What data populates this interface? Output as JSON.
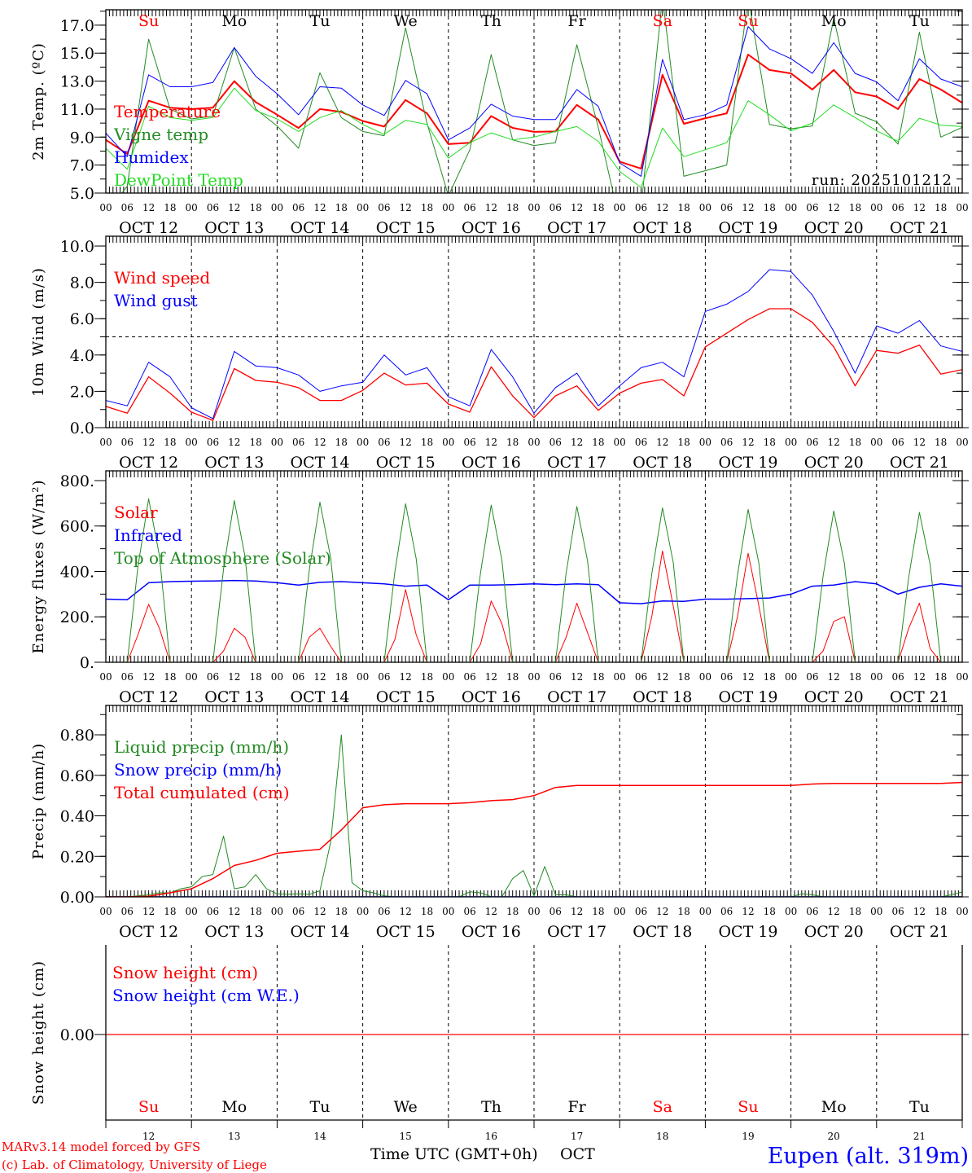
{
  "x_axis": {
    "start": "OCT 12 00",
    "step_hours_labels": 6,
    "hour_labels": [
      "00",
      "06",
      "12",
      "18"
    ],
    "date_labels": [
      "OCT 12",
      "OCT 13",
      "OCT 14",
      "OCT 15",
      "OCT 16",
      "OCT 17",
      "OCT 18",
      "OCT 19",
      "OCT 20",
      "OCT 21"
    ],
    "days": [
      {
        "name": "Su",
        "color": "#ff0000"
      },
      {
        "name": "Mo",
        "color": "#000000"
      },
      {
        "name": "Tu",
        "color": "#000000"
      },
      {
        "name": "We",
        "color": "#000000"
      },
      {
        "name": "Th",
        "color": "#000000"
      },
      {
        "name": "Fr",
        "color": "#000000"
      },
      {
        "name": "Sa",
        "color": "#ff0000"
      },
      {
        "name": "Su",
        "color": "#ff0000"
      },
      {
        "name": "Mo",
        "color": "#000000"
      },
      {
        "name": "Tu",
        "color": "#000000"
      }
    ],
    "day_numbers": [
      "12",
      "13",
      "14",
      "15",
      "16",
      "17",
      "18",
      "19",
      "20",
      "21"
    ],
    "xlabel": "Time UTC (GMT+0h)",
    "month": "OCT"
  },
  "footer": {
    "model": "MARv3.14 model forced by GFS",
    "credit": "(c) Lab. of Climatology, University of Liege",
    "station": "Eupen (alt. 319m)"
  },
  "chart_data": [
    {
      "id": "temperature",
      "type": "line",
      "ylabel": "2m Temp. (ºC)",
      "ylim": [
        5,
        18.1
      ],
      "yticks": [
        5,
        7,
        9,
        11,
        13,
        15,
        17
      ],
      "ytick_labels": [
        "5.0",
        "7.0",
        "9.0",
        "11.0",
        "13.0",
        "15.0",
        "17.0"
      ],
      "yminor": 1,
      "annotation": "run: 2025101212",
      "step_hours": 6,
      "series": [
        {
          "name": "Temperature",
          "color": "#ff0000",
          "width": 2,
          "values": [
            8.8,
            7.8,
            11.6,
            11.1,
            11.0,
            11.1,
            13.0,
            11.5,
            10.6,
            9.65,
            11.0,
            10.8,
            10.15,
            9.75,
            11.65,
            10.7,
            8.5,
            8.6,
            10.5,
            9.66,
            9.37,
            9.4,
            11.3,
            10.25,
            7.24,
            6.75,
            13.45,
            9.95,
            10.35,
            10.7,
            14.9,
            13.8,
            13.55,
            12.4,
            13.8,
            12.2,
            11.9,
            11.0,
            13.15,
            12.4,
            11.45
          ]
        },
        {
          "name": "Vigne temp",
          "color": "#228b22",
          "width": 1,
          "values": [
            3.5,
            5.5,
            16.0,
            11.0,
            10.3,
            10.5,
            15.4,
            11.0,
            9.8,
            8.2,
            13.6,
            10.4,
            9.4,
            9.1,
            16.8,
            10.0,
            4.8,
            8.1,
            14.9,
            8.8,
            8.4,
            8.6,
            15.6,
            9.7,
            3.0,
            4.0,
            19.0,
            6.2,
            6.6,
            7.0,
            19.0,
            9.9,
            9.6,
            9.8,
            17.5,
            10.7,
            10.1,
            8.5,
            16.5,
            9.0,
            9.7
          ]
        },
        {
          "name": "Humidex",
          "color": "#0000ff",
          "width": 1,
          "values": [
            9.28,
            7.6,
            13.45,
            12.6,
            12.6,
            12.9,
            15.4,
            13.35,
            12.1,
            10.6,
            12.6,
            12.5,
            11.3,
            10.55,
            13.05,
            12.1,
            8.8,
            9.65,
            11.35,
            10.5,
            10.25,
            10.25,
            12.4,
            11.2,
            7.15,
            6.2,
            14.55,
            10.25,
            10.6,
            11.3,
            16.9,
            15.3,
            14.6,
            13.55,
            15.75,
            13.55,
            12.95,
            11.6,
            14.6,
            13.15,
            12.6
          ]
        },
        {
          "name": "DewPoint Temp",
          "color": "#22dd22",
          "width": 1,
          "values": [
            8.2,
            6.7,
            11.2,
            10.4,
            10.2,
            10.4,
            12.5,
            10.9,
            10.3,
            9.4,
            10.4,
            10.9,
            9.9,
            9.2,
            10.2,
            9.9,
            7.5,
            8.6,
            9.3,
            8.8,
            9.0,
            9.4,
            9.75,
            8.7,
            6.55,
            5.4,
            9.65,
            7.6,
            8.1,
            8.6,
            11.6,
            10.6,
            9.45,
            10.0,
            11.3,
            10.4,
            9.45,
            8.7,
            10.35,
            9.85,
            9.75
          ]
        }
      ]
    },
    {
      "id": "wind",
      "type": "line",
      "ylabel": "10m Wind (m/s)",
      "ylim": [
        0,
        10.54
      ],
      "yticks": [
        0,
        2,
        4,
        6,
        8,
        10
      ],
      "ytick_labels": [
        "0.0",
        "2.0",
        "4.0",
        "6.0",
        "8.0",
        "10.0"
      ],
      "yminor": 1,
      "reference_line": 5.0,
      "step_hours": 6,
      "series": [
        {
          "name": "Wind speed",
          "color": "#ff0000",
          "width": 1.3,
          "values": [
            1.17,
            0.8,
            2.8,
            1.9,
            0.85,
            0.4,
            3.25,
            2.6,
            2.5,
            2.2,
            1.5,
            1.5,
            2.05,
            3.0,
            2.35,
            2.45,
            1.3,
            0.85,
            3.35,
            1.75,
            0.55,
            1.75,
            2.3,
            0.95,
            1.9,
            2.45,
            2.65,
            1.75,
            4.45,
            5.2,
            5.95,
            6.55,
            6.55,
            5.8,
            4.45,
            2.3,
            4.25,
            4.1,
            4.55,
            2.95,
            3.2
          ]
        },
        {
          "name": "Wind gust",
          "color": "#0000ff",
          "width": 1,
          "values": [
            1.5,
            1.2,
            3.6,
            2.8,
            1.1,
            0.5,
            4.2,
            3.4,
            3.3,
            2.9,
            2.0,
            2.3,
            2.5,
            4.0,
            2.9,
            3.3,
            1.7,
            1.2,
            4.3,
            2.8,
            0.8,
            2.2,
            3.0,
            1.2,
            2.3,
            3.3,
            3.6,
            2.8,
            6.4,
            6.8,
            7.5,
            8.7,
            8.6,
            7.3,
            5.3,
            3.0,
            5.6,
            5.2,
            5.9,
            4.5,
            4.2
          ]
        }
      ]
    },
    {
      "id": "energy",
      "type": "line",
      "ylabel": "Energy fluxes (W/m²)",
      "ylim": [
        0,
        843
      ],
      "yticks": [
        0,
        200,
        400,
        600,
        800
      ],
      "ytick_labels": [
        "0.",
        "200.",
        "400.",
        "600.",
        "800."
      ],
      "yminor": 100,
      "series": [
        {
          "name": "Solar",
          "color": "#ff0000",
          "width": 1,
          "step_hours": 3,
          "values": [
            0,
            0,
            0,
            120,
            255,
            150,
            0,
            0,
            0,
            0,
            0,
            50,
            150,
            110,
            0,
            0,
            0,
            0,
            0,
            110,
            150,
            70,
            0,
            0,
            0,
            0,
            0,
            100,
            320,
            120,
            0,
            0,
            0,
            0,
            0,
            80,
            270,
            170,
            0,
            0,
            0,
            0,
            0,
            110,
            260,
            130,
            0,
            0,
            0,
            0,
            0,
            200,
            490,
            250,
            0,
            0,
            0,
            0,
            0,
            200,
            480,
            250,
            0,
            0,
            0,
            0,
            0,
            50,
            180,
            200,
            0,
            0,
            0,
            0,
            0,
            150,
            260,
            60,
            0,
            0,
            0
          ]
        },
        {
          "name": "Infrared",
          "color": "#0000ff",
          "width": 1.5,
          "step_hours": 6,
          "values": [
            278,
            275,
            350,
            355,
            357,
            358,
            360,
            358,
            350,
            340,
            352,
            355,
            350,
            345,
            335,
            340,
            275,
            340,
            340,
            342,
            345,
            342,
            345,
            342,
            262,
            258,
            270,
            268,
            278,
            278,
            280,
            283,
            300,
            335,
            340,
            355,
            345,
            300,
            330,
            345,
            335
          ]
        },
        {
          "name": "Top of Atmosphere (Solar)",
          "color": "#228b22",
          "width": 1,
          "step_hours": 3,
          "values": [
            0,
            0,
            0,
            420,
            720,
            470,
            0,
            0,
            0,
            0,
            0,
            410,
            712,
            465,
            0,
            0,
            0,
            0,
            0,
            405,
            705,
            460,
            0,
            0,
            0,
            0,
            0,
            400,
            698,
            455,
            0,
            0,
            0,
            0,
            0,
            395,
            692,
            450,
            0,
            0,
            0,
            0,
            0,
            392,
            686,
            446,
            0,
            0,
            0,
            0,
            0,
            388,
            680,
            442,
            0,
            0,
            0,
            0,
            0,
            384,
            673,
            438,
            0,
            0,
            0,
            0,
            0,
            380,
            666,
            434,
            0,
            0,
            0,
            0,
            0,
            376,
            660,
            430,
            0,
            0,
            0
          ]
        }
      ]
    },
    {
      "id": "precip",
      "type": "line",
      "ylabel": "Precip (mm/h)",
      "ylim": [
        0,
        0.945
      ],
      "yticks": [
        0,
        0.2,
        0.4,
        0.6,
        0.8
      ],
      "ytick_labels": [
        "0.00",
        "0.20",
        "0.40",
        "0.60",
        "0.80"
      ],
      "yminor": 0.1,
      "series": [
        {
          "name": "Liquid precip (mm/h)",
          "color": "#228b22",
          "width": 1,
          "step_hours": 3,
          "values": [
            0,
            0,
            0,
            0.005,
            0.01,
            0.02,
            0.02,
            0.04,
            0.05,
            0.1,
            0.11,
            0.3,
            0.04,
            0.05,
            0.11,
            0.04,
            0.015,
            0.012,
            0.015,
            0.012,
            0.03,
            0.27,
            0.8,
            0.07,
            0.03,
            0.02,
            0.005,
            0,
            0,
            0,
            0,
            0,
            0,
            0,
            0.025,
            0.02,
            0,
            0,
            0.09,
            0.13,
            0.005,
            0.15,
            0.01,
            0.01,
            0,
            0,
            0,
            0,
            0,
            0,
            0,
            0,
            0,
            0,
            0,
            0,
            0,
            0,
            0,
            0,
            0,
            0,
            0,
            0,
            0,
            0.015,
            0.01,
            0,
            0,
            0,
            0,
            0,
            0,
            0,
            0,
            0,
            0,
            0,
            0,
            0.01,
            0.025
          ]
        },
        {
          "name": "Snow precip (mm/h)",
          "color": "#0000ff",
          "width": 1.5,
          "step_hours": 24,
          "values": [
            0,
            0,
            0,
            0,
            0,
            0,
            0,
            0,
            0,
            0,
            0
          ]
        },
        {
          "name": "Total cumulated (cm)",
          "color": "#ff0000",
          "width": 1.5,
          "step_hours": 6,
          "values": [
            0,
            0,
            0.003,
            0.02,
            0.04,
            0.09,
            0.155,
            0.18,
            0.215,
            0.225,
            0.235,
            0.33,
            0.44,
            0.455,
            0.46,
            0.46,
            0.46,
            0.465,
            0.475,
            0.48,
            0.5,
            0.54,
            0.55,
            0.55,
            0.55,
            0.55,
            0.55,
            0.55,
            0.55,
            0.55,
            0.55,
            0.55,
            0.55,
            0.557,
            0.56,
            0.56,
            0.56,
            0.56,
            0.56,
            0.56,
            0.565
          ]
        }
      ]
    },
    {
      "id": "snow",
      "type": "line",
      "ylabel": "Snow height (cm)",
      "ylim": [
        -0.955,
        1
      ],
      "yticks": [
        0
      ],
      "ytick_labels": [
        "0.00"
      ],
      "yminor": null,
      "series": [
        {
          "name": "Snow height (cm W.E.)",
          "color": "#0000ff",
          "width": 1,
          "step_hours": 24,
          "values": [
            0,
            0,
            0,
            0,
            0,
            0,
            0,
            0,
            0,
            0,
            0
          ]
        },
        {
          "name": "Snow height (cm)",
          "color": "#ff0000",
          "width": 1.3,
          "step_hours": 24,
          "values": [
            0,
            0,
            0,
            0,
            0,
            0,
            0,
            0,
            0,
            0,
            0
          ]
        }
      ],
      "legend_order": [
        1,
        0
      ]
    }
  ]
}
